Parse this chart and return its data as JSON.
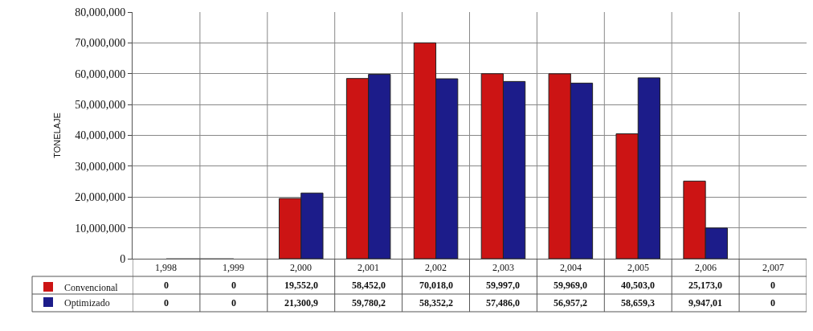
{
  "chart_data": {
    "type": "bar",
    "ylabel": "TONELAJE",
    "categories": [
      "1,998",
      "1,999",
      "2,000",
      "2,001",
      "2,002",
      "2,003",
      "2,004",
      "2,005",
      "2,006",
      "2,007"
    ],
    "series": [
      {
        "name": "Convencional",
        "color": "#cc1414",
        "values": [
          0,
          0,
          19552000,
          58452000,
          70018000,
          59997000,
          59969000,
          40503000,
          25173000,
          0
        ],
        "value_labels": [
          "0",
          "0",
          "19,552,0",
          "58,452,0",
          "70,018,0",
          "59,997,0",
          "59,969,0",
          "40,503,0",
          "25,173,0",
          "0"
        ]
      },
      {
        "name": "Optimizado",
        "color": "#1c1c8a",
        "values": [
          0,
          0,
          21300900,
          59780200,
          58352200,
          57486000,
          56957200,
          58659300,
          9947010,
          0
        ],
        "value_labels": [
          "0",
          "0",
          "21,300,9",
          "59,780,2",
          "58,352,2",
          "57,486,0",
          "56,957,2",
          "58,659,3",
          "9,947,01",
          "0"
        ]
      }
    ],
    "ylim": [
      0,
      80000000
    ],
    "yticks": [
      {
        "value": 0,
        "label": "0"
      },
      {
        "value": 10000000,
        "label": "10,000,000"
      },
      {
        "value": 20000000,
        "label": "20,000,000"
      },
      {
        "value": 30000000,
        "label": "30,000,000"
      },
      {
        "value": 40000000,
        "label": "40,000,000"
      },
      {
        "value": 50000000,
        "label": "50,000,000"
      },
      {
        "value": 60000000,
        "label": "60,000,000"
      },
      {
        "value": 70000000,
        "label": "70,000,000"
      },
      {
        "value": 80000000,
        "label": "80,000,000"
      }
    ],
    "grid": true,
    "legend": "bottom left"
  }
}
